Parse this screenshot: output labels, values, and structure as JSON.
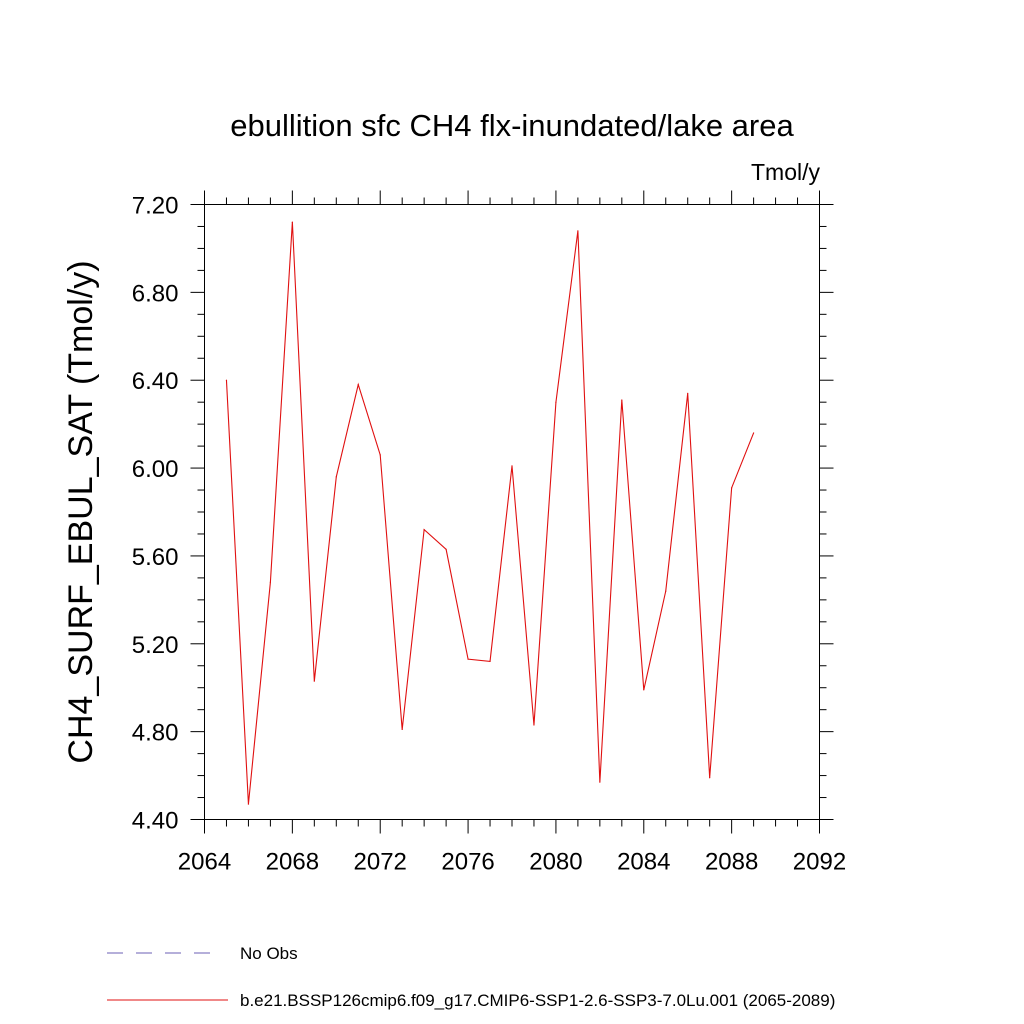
{
  "chart_data": {
    "type": "line",
    "title": "ebullition sfc CH4 flx-inundated/lake area",
    "units": "Tmol/y",
    "ylabel": "CH4_SURF_EBUL_SAT  (Tmol/y)",
    "xlabel": "",
    "xlim": [
      2064,
      2092
    ],
    "ylim": [
      4.4,
      7.2
    ],
    "x_ticks": [
      "2064",
      "2068",
      "2072",
      "2076",
      "2080",
      "2084",
      "2088",
      "2092"
    ],
    "y_ticks": [
      "4.40",
      "4.80",
      "5.20",
      "5.60",
      "6.00",
      "6.40",
      "6.80",
      "7.20"
    ],
    "grid": false,
    "legend_position": "bottom",
    "series": [
      {
        "name": "No Obs",
        "color": "#6b5fb5",
        "dash": "dashed",
        "x": [],
        "values": []
      },
      {
        "name": "b.e21.BSSP126cmip6.f09_g17.CMIP6-SSP1-2.6-SSP3-7.0Lu.001 (2065-2089)",
        "color": "#e01010",
        "dash": "solid",
        "x": [
          2065,
          2066,
          2067,
          2068,
          2069,
          2070,
          2071,
          2072,
          2073,
          2074,
          2075,
          2076,
          2077,
          2078,
          2079,
          2080,
          2081,
          2082,
          2083,
          2084,
          2085,
          2086,
          2087,
          2088,
          2089
        ],
        "values": [
          6.4,
          4.47,
          5.48,
          7.12,
          5.03,
          5.96,
          6.38,
          6.06,
          4.81,
          5.72,
          5.63,
          5.13,
          5.12,
          6.01,
          4.83,
          6.3,
          7.08,
          4.57,
          6.31,
          4.99,
          5.44,
          6.34,
          4.59,
          5.91,
          6.16
        ]
      }
    ]
  }
}
